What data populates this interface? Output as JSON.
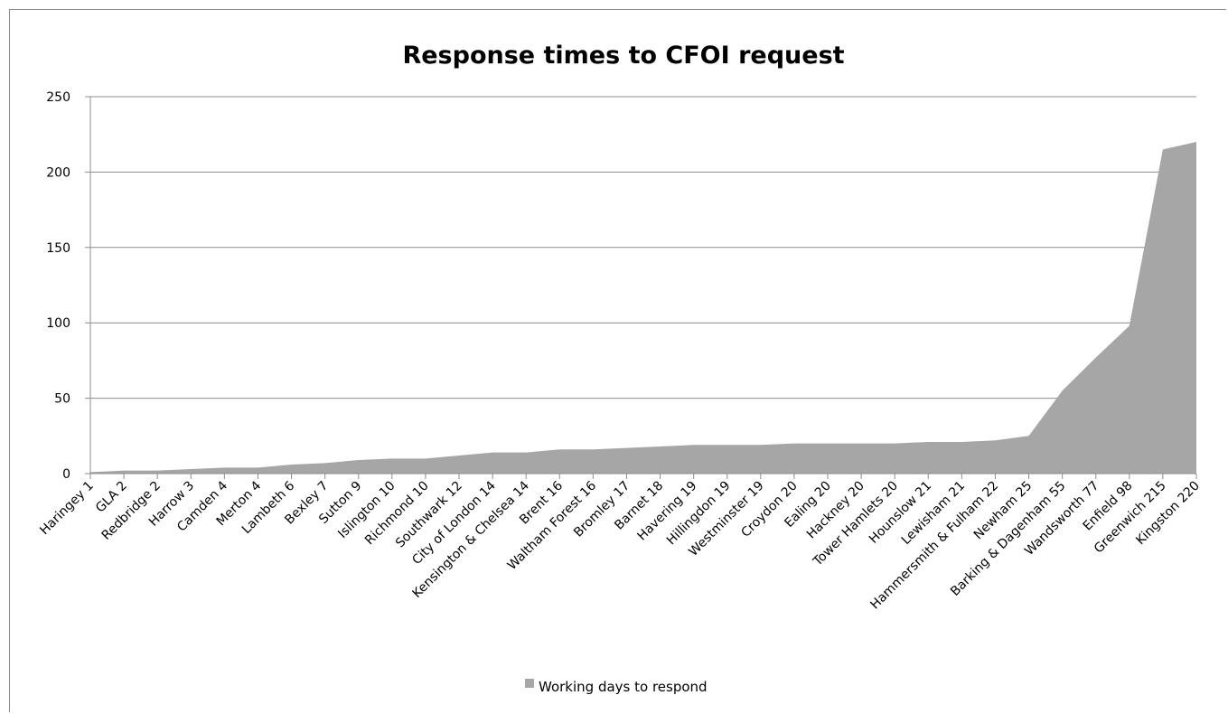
{
  "chart_data": {
    "type": "area",
    "title": "Response times to CFOI request",
    "xlabel": "",
    "ylabel": "",
    "categories": [
      "Haringey 1",
      "GLA 2",
      "Redbridge 2",
      "Harrow 3",
      "Camden 4",
      "Merton 4",
      "Lambeth 6",
      "Bexley 7",
      "Sutton 9",
      "Islington 10",
      "Richmond 10",
      "Southwark 12",
      "City of London 14",
      "Kensington & Chelsea 14",
      "Brent 16",
      "Waltham Forest 16",
      "Bromley 17",
      "Barnet 18",
      "Havering 19",
      "Hillingdon 19",
      "Westminster 19",
      "Croydon 20",
      "Ealing 20",
      "Hackney 20",
      "Tower Hamlets 20",
      "Hounslow 21",
      "Lewisham 21",
      "Hammersmith & Fulham 22",
      "Newham 25",
      "Barking & Dagenham 55",
      "Wandsworth 77",
      "Enfield 98",
      "Greenwich 215",
      "Kingston 220"
    ],
    "series": [
      {
        "name": "Working days to respond",
        "color": "#a6a6a6",
        "values": [
          1,
          2,
          2,
          3,
          4,
          4,
          6,
          7,
          9,
          10,
          10,
          12,
          14,
          14,
          16,
          16,
          17,
          18,
          19,
          19,
          19,
          20,
          20,
          20,
          20,
          21,
          21,
          22,
          25,
          55,
          77,
          98,
          215,
          220
        ]
      }
    ],
    "ylim": [
      0,
      250
    ],
    "yticks": [
      0,
      50,
      100,
      150,
      200,
      250
    ],
    "grid": true,
    "legend_position": "bottom",
    "gridline_color": "#8c8c8c"
  }
}
